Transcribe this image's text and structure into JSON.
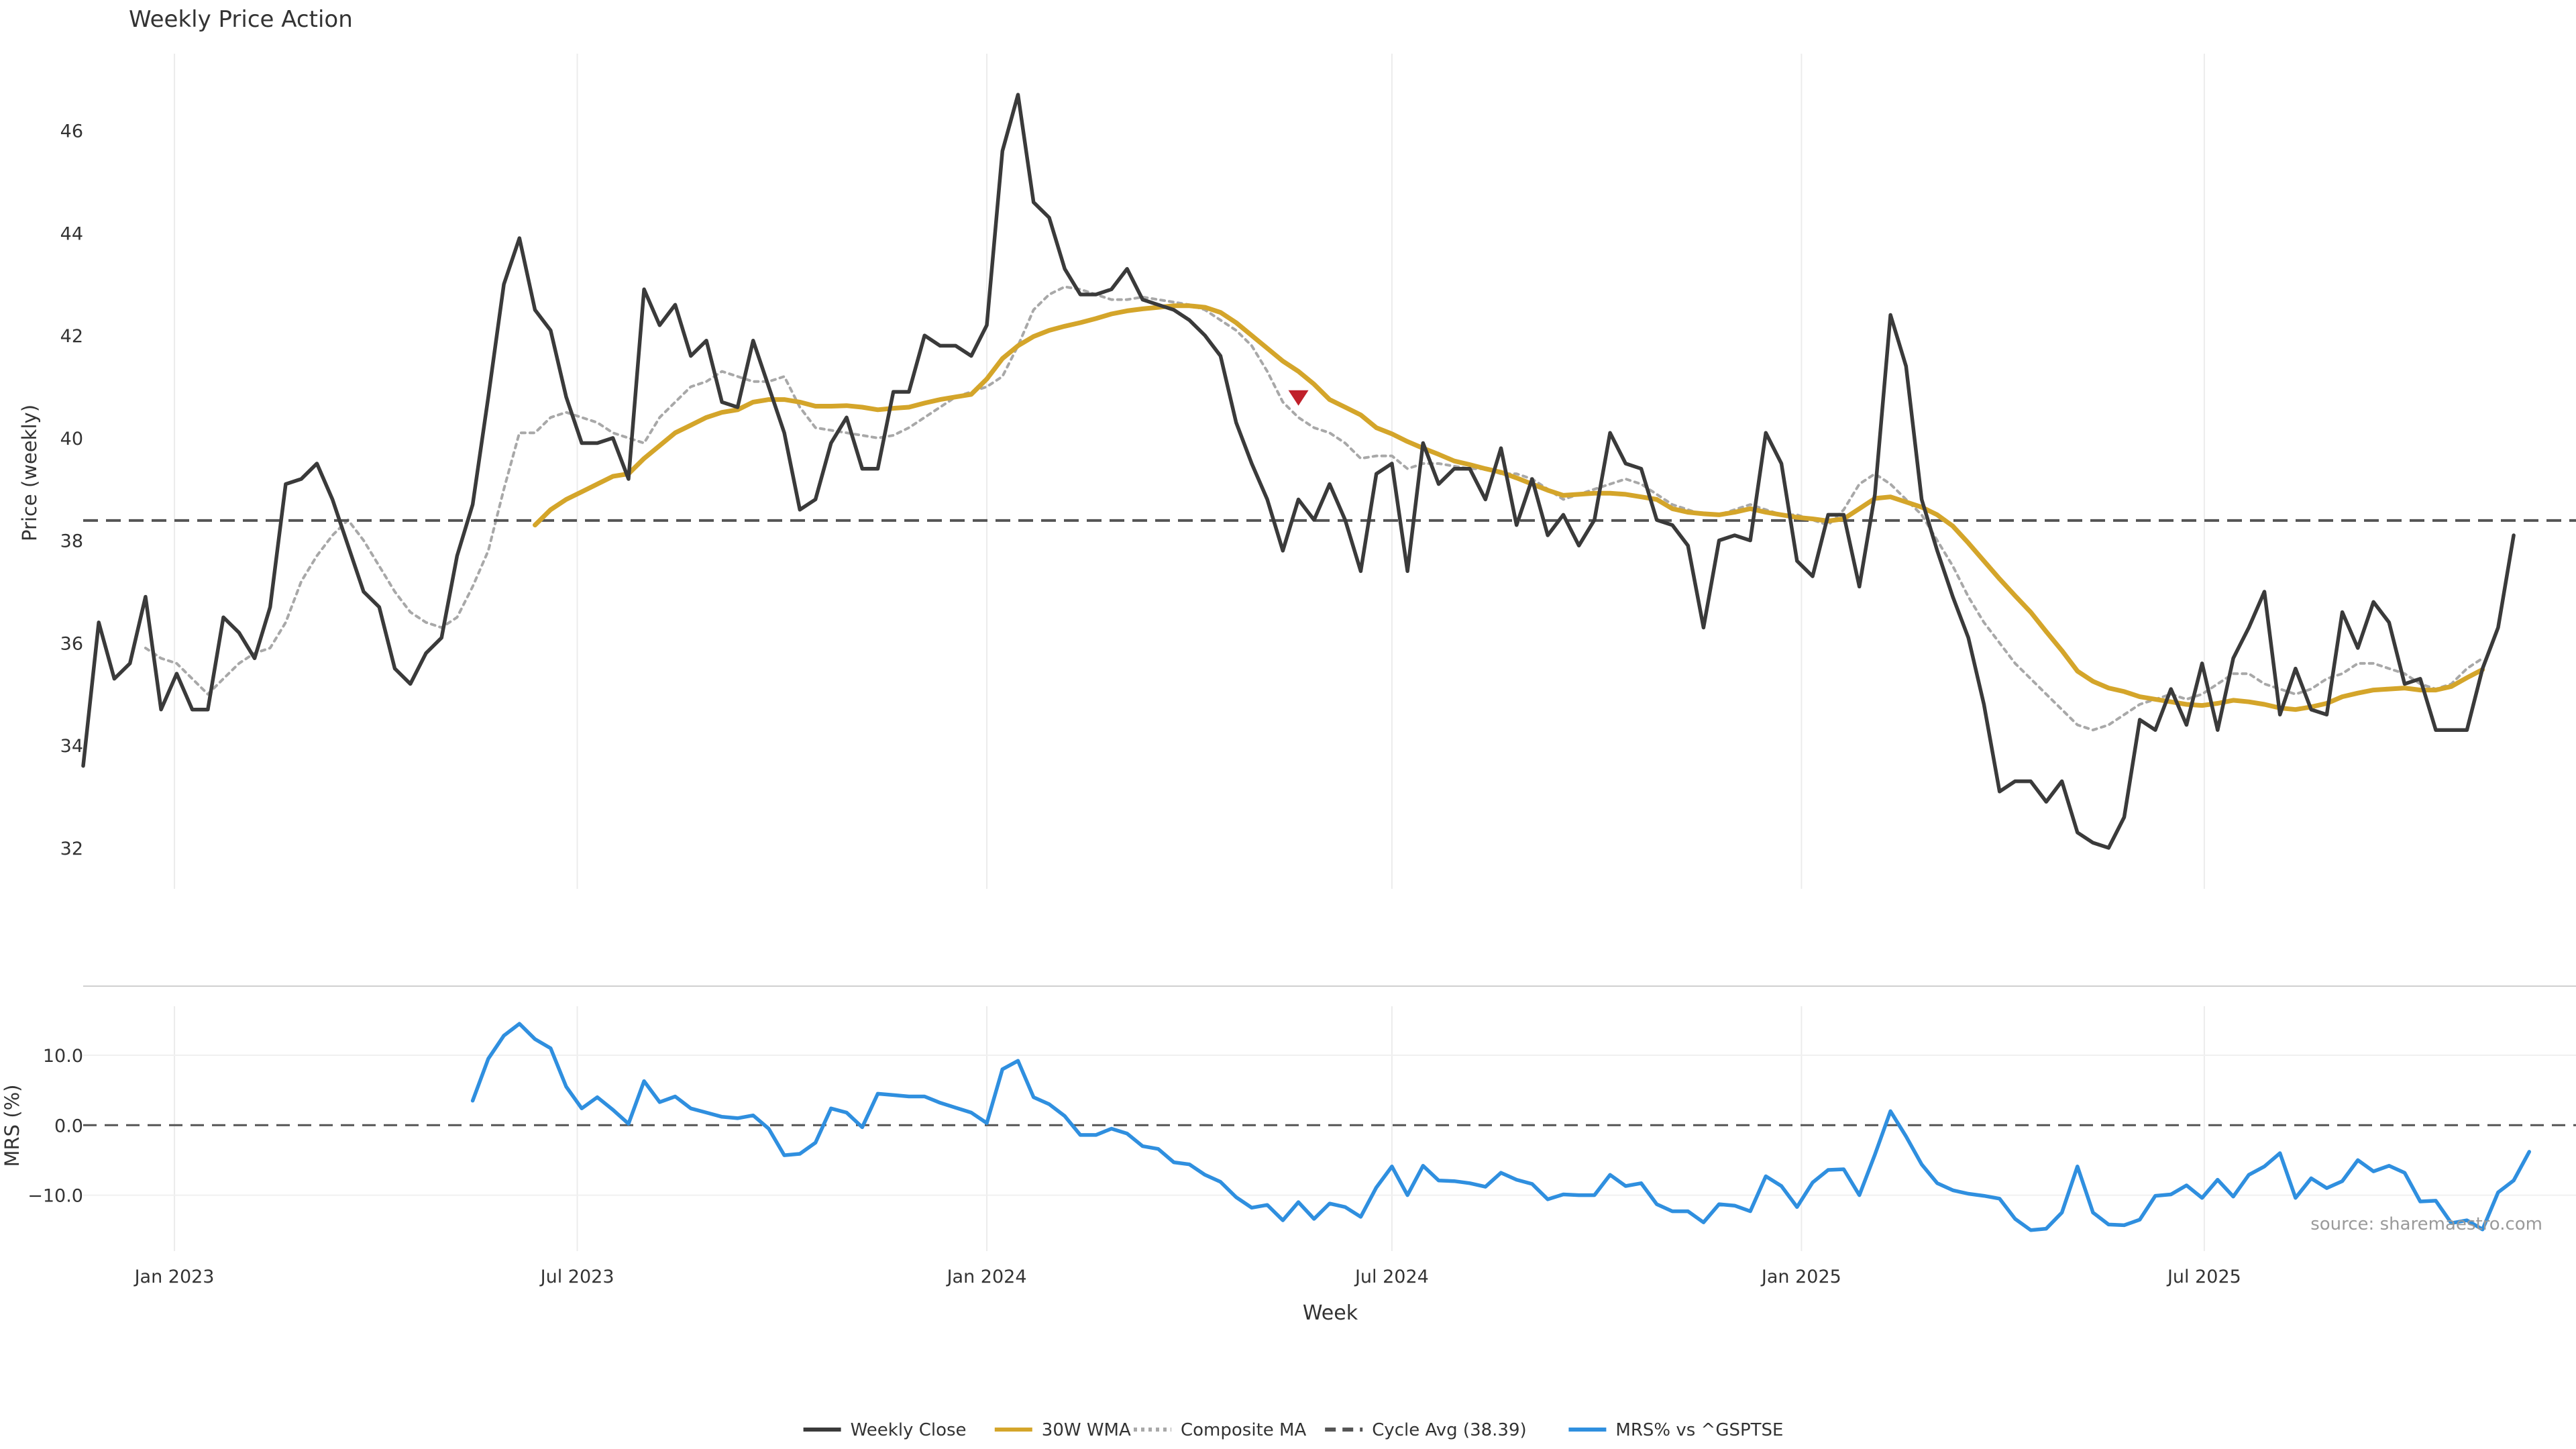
{
  "chart_data": [
    {
      "type": "line",
      "title": "Weekly Price Action",
      "ylabel": "Price (weekly)",
      "ylim": [
        31.2,
        47.5
      ],
      "yticks": [
        32,
        34,
        36,
        38,
        40,
        42,
        44,
        46
      ],
      "xlim": [
        "2022-11-21",
        "2025-12-15"
      ],
      "xticks": [
        {
          "date": "2023-01-01",
          "label": "Jan 2023"
        },
        {
          "date": "2023-07-01",
          "label": "Jul 2023"
        },
        {
          "date": "2024-01-01",
          "label": "Jan 2024"
        },
        {
          "date": "2024-07-01",
          "label": "Jul 2024"
        },
        {
          "date": "2025-01-01",
          "label": "Jan 2025"
        },
        {
          "date": "2025-07-01",
          "label": "Jul 2025"
        }
      ],
      "grid": "vertical",
      "x_start": "2022-11-21",
      "series": [
        {
          "name": "Weekly Close",
          "color": "#3a3a3a",
          "style": "solid",
          "values": [
            33.6,
            36.4,
            35.3,
            35.6,
            36.9,
            34.7,
            35.4,
            34.7,
            34.7,
            36.5,
            36.2,
            35.7,
            36.7,
            39.1,
            39.2,
            39.5,
            38.8,
            37.9,
            37.0,
            36.7,
            35.5,
            35.2,
            35.8,
            36.1,
            37.7,
            38.7,
            40.8,
            43.0,
            43.9,
            42.5,
            42.1,
            40.8,
            39.9,
            39.9,
            40.0,
            39.2,
            42.9,
            42.2,
            42.6,
            41.6,
            41.9,
            40.7,
            40.6,
            41.9,
            41.0,
            40.1,
            38.6,
            38.8,
            39.9,
            40.4,
            39.4,
            39.4,
            40.9,
            40.9,
            42.0,
            41.8,
            41.8,
            41.6,
            42.2,
            45.6,
            46.7,
            44.6,
            44.3,
            43.3,
            42.8,
            42.8,
            42.9,
            43.3,
            42.7,
            42.6,
            42.5,
            42.3,
            42.0,
            41.6,
            40.3,
            39.5,
            38.8,
            37.8,
            38.8,
            38.4,
            39.1,
            38.4,
            37.4,
            39.3,
            39.5,
            37.4,
            39.9,
            39.1,
            39.4,
            39.4,
            38.8,
            39.8,
            38.3,
            39.2,
            38.1,
            38.5,
            37.9,
            38.4,
            40.1,
            39.5,
            39.4,
            38.4,
            38.3,
            37.9,
            36.3,
            38.0,
            38.1,
            38.0,
            40.1,
            39.5,
            37.6,
            37.3,
            38.5,
            38.5,
            37.1,
            38.9,
            42.4,
            41.4,
            38.8,
            37.8,
            36.9,
            36.1,
            34.8,
            33.1,
            33.3,
            33.3,
            32.9,
            33.3,
            32.3,
            32.1,
            32.0,
            32.6,
            34.5,
            34.3,
            35.1,
            34.4,
            35.6,
            34.3,
            35.7,
            36.3,
            37.0,
            34.6,
            35.5,
            34.7,
            34.6,
            36.6,
            35.9,
            36.8,
            36.4,
            35.2,
            35.3,
            34.3,
            34.3,
            34.3,
            35.5,
            36.3,
            38.1
          ]
        },
        {
          "name": "30W WMA",
          "color": "#d4a52a",
          "style": "solid",
          "start_index": 29,
          "values": [
            38.3,
            38.6,
            38.8,
            38.95,
            39.1,
            39.25,
            39.3,
            39.6,
            39.85,
            40.1,
            40.25,
            40.4,
            40.5,
            40.55,
            40.7,
            40.75,
            40.75,
            40.7,
            40.62,
            40.62,
            40.63,
            40.6,
            40.55,
            40.58,
            40.6,
            40.68,
            40.75,
            40.8,
            40.85,
            41.15,
            41.55,
            41.8,
            41.98,
            42.1,
            42.18,
            42.25,
            42.33,
            42.42,
            42.48,
            42.52,
            42.55,
            42.58,
            42.58,
            42.55,
            42.45,
            42.25,
            42.0,
            41.75,
            41.5,
            41.3,
            41.05,
            40.75,
            40.6,
            40.45,
            40.2,
            40.08,
            39.93,
            39.8,
            39.68,
            39.55,
            39.48,
            39.4,
            39.33,
            39.22,
            39.1,
            38.98,
            38.88,
            38.9,
            38.92,
            38.92,
            38.9,
            38.85,
            38.8,
            38.62,
            38.55,
            38.52,
            38.5,
            38.55,
            38.62,
            38.55,
            38.5,
            38.45,
            38.42,
            38.38,
            38.42,
            38.62,
            38.82,
            38.85,
            38.75,
            38.65,
            38.5,
            38.28,
            37.95,
            37.6,
            37.25,
            36.92,
            36.6,
            36.22,
            35.85,
            35.45,
            35.25,
            35.12,
            35.05,
            34.95,
            34.9,
            34.85,
            34.8,
            34.78,
            34.82,
            34.88,
            34.85,
            34.8,
            34.73,
            34.7,
            34.75,
            34.82,
            34.95,
            35.02,
            35.08,
            35.1,
            35.12,
            35.08,
            35.08,
            35.15,
            35.32,
            35.48
          ]
        },
        {
          "name": "Composite MA",
          "color": "#a8a8a8",
          "style": "dotted",
          "start_index": 4,
          "values": [
            35.9,
            35.7,
            35.6,
            35.3,
            35.0,
            35.3,
            35.6,
            35.8,
            35.9,
            36.4,
            37.2,
            37.7,
            38.1,
            38.4,
            38.0,
            37.5,
            37.0,
            36.6,
            36.4,
            36.3,
            36.5,
            37.1,
            37.8,
            39.0,
            40.1,
            40.1,
            40.4,
            40.5,
            40.4,
            40.3,
            40.1,
            40.0,
            39.9,
            40.4,
            40.7,
            41.0,
            41.1,
            41.3,
            41.2,
            41.1,
            41.1,
            41.2,
            40.6,
            40.2,
            40.15,
            40.1,
            40.05,
            40.0,
            40.05,
            40.2,
            40.4,
            40.6,
            40.8,
            40.9,
            41.0,
            41.2,
            41.8,
            42.5,
            42.8,
            42.95,
            42.9,
            42.8,
            42.7,
            42.7,
            42.75,
            42.7,
            42.65,
            42.6,
            42.5,
            42.3,
            42.1,
            41.8,
            41.3,
            40.7,
            40.4,
            40.2,
            40.1,
            39.9,
            39.6,
            39.65,
            39.65,
            39.4,
            39.5,
            39.5,
            39.45,
            39.4,
            39.4,
            39.3,
            39.3,
            39.2,
            39.0,
            38.8,
            38.9,
            39.0,
            39.1,
            39.2,
            39.1,
            38.9,
            38.7,
            38.6,
            38.5,
            38.5,
            38.6,
            38.7,
            38.6,
            38.5,
            38.5,
            38.4,
            38.3,
            38.6,
            39.1,
            39.3,
            39.1,
            38.8,
            38.5,
            38.0,
            37.5,
            36.9,
            36.4,
            36.0,
            35.6,
            35.3,
            35.0,
            34.7,
            34.4,
            34.3,
            34.4,
            34.6,
            34.8,
            34.9,
            35.0,
            34.9,
            35.0,
            35.2,
            35.4,
            35.4,
            35.2,
            35.1,
            35.0,
            35.1,
            35.3,
            35.4,
            35.6,
            35.6,
            35.5,
            35.4,
            35.2,
            35.1,
            35.2,
            35.5,
            35.7
          ]
        },
        {
          "name": "Cycle Avg (38.39)",
          "color": "#555555",
          "style": "dashed",
          "hline": 38.39
        }
      ],
      "markers": [
        {
          "index": 78,
          "value": 40.8,
          "shape": "triangle-down",
          "color": "#c0202a"
        }
      ]
    },
    {
      "type": "line",
      "ylabel": "MRS (%)",
      "xlabel": "Week",
      "ylim": [
        -18,
        17
      ],
      "yticks": [
        {
          "value": 10,
          "label": "10.0"
        },
        {
          "value": 0,
          "label": "0.0"
        },
        {
          "value": -10,
          "label": "−10.0"
        }
      ],
      "zero_line": 0,
      "series": [
        {
          "name": "MRS% vs ^GSPTSE",
          "color": "#2f8fdf",
          "style": "solid",
          "start_index": 25,
          "values": [
            3.5,
            9.5,
            12.8,
            14.5,
            12.3,
            11.0,
            5.5,
            2.4,
            4.0,
            2.2,
            0.2,
            6.3,
            3.3,
            4.1,
            2.4,
            1.8,
            1.2,
            1.0,
            1.4,
            -0.5,
            -4.3,
            -4.1,
            -2.5,
            2.4,
            1.8,
            -0.3,
            4.5,
            4.3,
            4.1,
            4.1,
            3.2,
            2.5,
            1.8,
            0.3,
            8.0,
            9.2,
            4.0,
            3.0,
            1.3,
            -1.4,
            -1.4,
            -0.5,
            -1.2,
            -3.0,
            -3.4,
            -5.3,
            -5.6,
            -7.1,
            -8.1,
            -10.3,
            -11.8,
            -11.4,
            -13.6,
            -11.0,
            -13.4,
            -11.2,
            -11.7,
            -13.1,
            -8.9,
            -5.9,
            -10.0,
            -5.8,
            -7.9,
            -8.0,
            -8.3,
            -8.8,
            -6.8,
            -7.8,
            -8.4,
            -10.6,
            -9.9,
            -10.0,
            -10.0,
            -7.1,
            -8.7,
            -8.3,
            -11.3,
            -12.3,
            -12.3,
            -13.9,
            -11.3,
            -11.5,
            -12.3,
            -7.3,
            -8.7,
            -11.7,
            -8.2,
            -6.4,
            -6.3,
            -10.0,
            -4.2,
            2.0,
            -1.6,
            -5.6,
            -8.3,
            -9.3,
            -9.8,
            -10.1,
            -10.5,
            -13.4,
            -15.0,
            -14.8,
            -12.5,
            -5.9,
            -12.5,
            -14.2,
            -14.3,
            -13.5,
            -10.1,
            -9.9,
            -8.6,
            -10.4,
            -7.8,
            -10.2,
            -7.1,
            -5.9,
            -4.0,
            -10.4,
            -7.6,
            -9.0,
            -8.0,
            -5.0,
            -6.6,
            -5.8,
            -6.8,
            -10.9,
            -10.8,
            -14.0,
            -13.6,
            -14.9,
            -9.6,
            -7.9,
            -3.8
          ]
        }
      ]
    }
  ],
  "legend": [
    {
      "label": "Weekly Close",
      "color": "#3a3a3a",
      "style": "solid"
    },
    {
      "label": "30W WMA",
      "color": "#d4a52a",
      "style": "solid"
    },
    {
      "label": "Composite MA",
      "color": "#a8a8a8",
      "style": "dotted"
    },
    {
      "label": "Cycle Avg (38.39)",
      "color": "#555555",
      "style": "dashed"
    },
    {
      "label": "MRS% vs ^GSPTSE",
      "color": "#2f8fdf",
      "style": "solid"
    }
  ],
  "legend_position": "bottom-center",
  "source_note": "source: sharemaestro.com"
}
